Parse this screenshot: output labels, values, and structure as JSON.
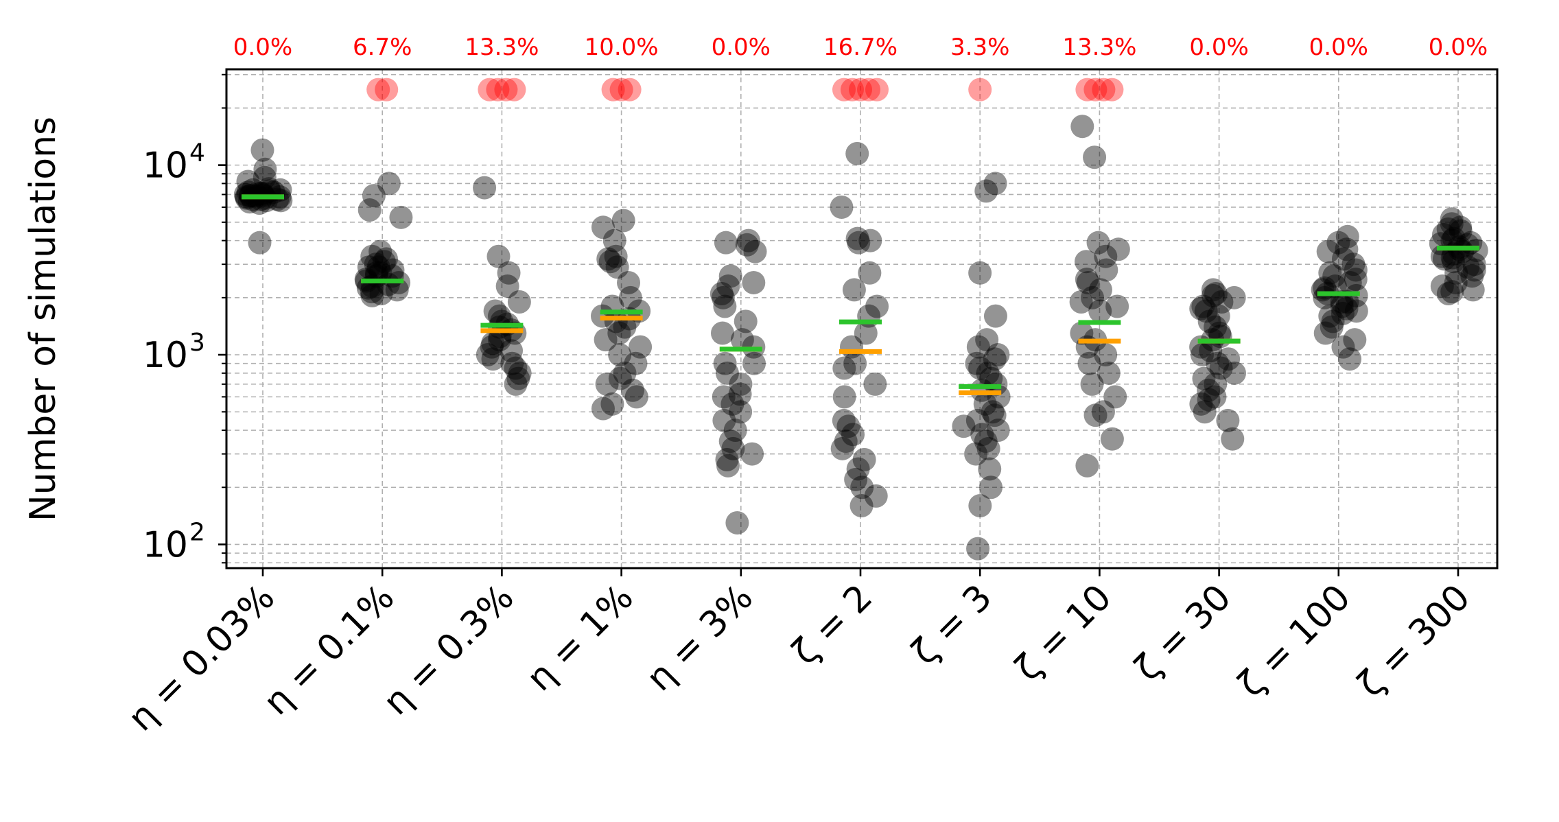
{
  "chart_data": {
    "type": "scatter",
    "title": "",
    "ylabel": "Number of simulations",
    "yscale": "log",
    "ylim": [
      75,
      32000
    ],
    "grid": true,
    "categories": [
      "η = 0.03%",
      "η = 0.1%",
      "η = 0.3%",
      "η = 1%",
      "η = 3%",
      "ζ = 2",
      "ζ = 3",
      "ζ = 10",
      "ζ = 30",
      "ζ = 100",
      "ζ = 300"
    ],
    "y_tick_labels": [
      {
        "value": 100,
        "base": "10",
        "exp": "2"
      },
      {
        "value": 1000,
        "base": "10",
        "exp": "3"
      },
      {
        "value": 10000,
        "base": "10",
        "exp": "4"
      }
    ],
    "failure_percent": [
      "0.0%",
      "6.7%",
      "13.3%",
      "10.0%",
      "0.0%",
      "16.7%",
      "3.3%",
      "13.3%",
      "0.0%",
      "0.0%",
      "0.0%"
    ],
    "failure_value": 25000,
    "failure_counts": [
      0,
      2,
      4,
      3,
      0,
      5,
      1,
      4,
      0,
      0,
      0
    ],
    "green_marker": [
      6800,
      2450,
      1430,
      1680,
      1070,
      1490,
      680,
      1480,
      1180,
      2100,
      3650
    ],
    "orange_marker": [
      6800,
      2450,
      1340,
      1560,
      1070,
      1040,
      630,
      1180,
      1180,
      2100,
      3650
    ],
    "points": [
      [
        12000,
        9500,
        8200,
        7400,
        7100,
        6900,
        6700,
        6600,
        6500,
        6300,
        6900,
        7200,
        7500,
        6800,
        7000,
        6600,
        7300,
        6400,
        6700,
        7100,
        6900,
        7000,
        6800,
        6500,
        7200,
        6600,
        7400,
        6900,
        3900,
        8600
      ],
      [
        8000,
        6900,
        5800,
        5300,
        3500,
        3300,
        3100,
        3000,
        2900,
        2800,
        2700,
        2600,
        2500,
        2400,
        2300,
        2200,
        2100,
        2050,
        3200,
        2900,
        2600,
        2350,
        2250,
        2150,
        2700,
        2450
      ],
      [
        7600,
        3300,
        2700,
        2300,
        1900,
        1700,
        1600,
        1500,
        1400,
        1300,
        1250,
        1200,
        1150,
        1100,
        1050,
        1000,
        950,
        900,
        850,
        800,
        750,
        700,
        1350,
        1450
      ],
      [
        5100,
        4700,
        4000,
        3300,
        3100,
        2900,
        2400,
        2000,
        1800,
        1700,
        1600,
        1500,
        1400,
        1300,
        1200,
        1100,
        1000,
        900,
        800,
        750,
        700,
        650,
        600,
        550,
        520,
        3200,
        1550
      ],
      [
        4000,
        3800,
        3500,
        2600,
        2400,
        2300,
        2000,
        1800,
        1300,
        1200,
        1100,
        900,
        800,
        700,
        600,
        550,
        500,
        450,
        400,
        350,
        320,
        300,
        280,
        260,
        2100,
        1500,
        900,
        130,
        3900,
        620
      ],
      [
        11500,
        6000,
        4000,
        3900,
        2700,
        2200,
        1800,
        1600,
        1300,
        1100,
        900,
        850,
        700,
        600,
        450,
        420,
        380,
        320,
        280,
        250,
        220,
        200,
        180,
        160,
        4100,
        350
      ],
      [
        8000,
        7300,
        2700,
        1600,
        1200,
        1100,
        1000,
        950,
        900,
        850,
        800,
        750,
        700,
        650,
        600,
        550,
        500,
        450,
        420,
        400,
        380,
        350,
        300,
        250,
        200,
        160,
        95,
        480,
        320
      ],
      [
        16000,
        11000,
        3900,
        3600,
        3300,
        3100,
        2800,
        2500,
        2400,
        2200,
        2000,
        1900,
        1800,
        1700,
        1300,
        1200,
        1100,
        1000,
        900,
        800,
        700,
        600,
        500,
        480,
        360,
        260
      ],
      [
        2200,
        2100,
        2000,
        1900,
        1800,
        1700,
        1600,
        1500,
        1400,
        1300,
        1200,
        1100,
        1000,
        950,
        900,
        850,
        800,
        750,
        700,
        650,
        600,
        550,
        500,
        450,
        360,
        1750,
        1250,
        1050,
        2050,
        580
      ],
      [
        4200,
        3900,
        3500,
        3200,
        3000,
        2800,
        2600,
        2500,
        2400,
        2300,
        2200,
        2100,
        2000,
        1900,
        1800,
        1700,
        1600,
        1500,
        1400,
        1300,
        1200,
        1100,
        950,
        3600,
        2700,
        1900,
        2250,
        1750,
        2050,
        1650
      ],
      [
        5200,
        4900,
        4700,
        4500,
        4300,
        4100,
        3900,
        3800,
        3700,
        3600,
        3500,
        3400,
        3300,
        3200,
        3100,
        3000,
        2900,
        2800,
        2700,
        2600,
        2400,
        2300,
        2200,
        2150,
        2100,
        4600,
        3850,
        3250,
        4000,
        3550
      ]
    ],
    "colors": {
      "point": "#000000",
      "failure": "#ff0000",
      "green": "#2cc42c",
      "orange": "#ffa000",
      "grid": "#b0b0b0"
    }
  }
}
